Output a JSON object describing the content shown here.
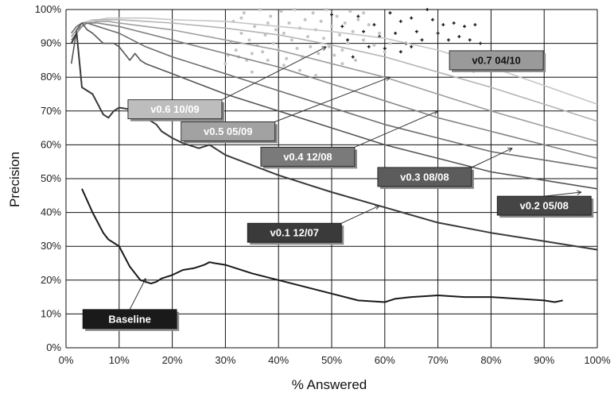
{
  "chart_data": {
    "type": "line",
    "xlabel": "% Answered",
    "ylabel": "Precision",
    "xlim": [
      0,
      100
    ],
    "ylim": [
      0,
      100
    ],
    "x_ticks": [
      "0%",
      "10%",
      "20%",
      "30%",
      "40%",
      "50%",
      "60%",
      "70%",
      "80%",
      "90%",
      "100%"
    ],
    "y_ticks": [
      "0%",
      "10%",
      "20%",
      "30%",
      "40%",
      "50%",
      "60%",
      "70%",
      "80%",
      "90%",
      "100%"
    ],
    "grid": true,
    "series": [
      {
        "name": "Baseline",
        "color": "#1a1a1a",
        "x": [
          3,
          5,
          7,
          8,
          9,
          10,
          11,
          12,
          13,
          14,
          15,
          16,
          17,
          18,
          20,
          22,
          24,
          26,
          27,
          28,
          30,
          35,
          40,
          45,
          50,
          55,
          60,
          62,
          65,
          70,
          75,
          80,
          85,
          90,
          92,
          93.5
        ],
        "y": [
          47,
          40,
          34,
          32,
          31,
          30,
          27,
          24,
          22,
          20,
          19.5,
          19,
          19.5,
          20.5,
          21.5,
          23,
          23.5,
          24.5,
          25.3,
          25,
          24.5,
          22,
          20,
          18,
          16,
          14,
          13.5,
          14.5,
          15,
          15.5,
          15,
          15,
          14.5,
          14,
          13.5,
          14
        ],
        "label": "Baseline",
        "label_x": 12,
        "label_y": 8.5,
        "label_fill": "#1a1a1a",
        "label_color": "#ffffff",
        "pointer_x": 15,
        "pointer_y": 20.5
      },
      {
        "name": "v0.1 12/07",
        "color": "#3a3a3a",
        "x": [
          1,
          2,
          3,
          5,
          7,
          8,
          9,
          10,
          12,
          14,
          15,
          17,
          18,
          20,
          22,
          25,
          27,
          30,
          35,
          40,
          50,
          60,
          70,
          80,
          90,
          100
        ],
        "y": [
          90,
          93,
          77,
          75,
          69,
          68,
          70,
          71,
          70.5,
          69.5,
          68,
          66,
          64,
          62,
          60.5,
          59,
          60,
          57,
          54,
          51,
          46,
          41.5,
          37,
          34,
          31.5,
          29
        ],
        "label": "v0.1 12/07",
        "label_x": 43,
        "label_y": 34,
        "label_fill": "#3a3a3a",
        "label_color": "#ffffff",
        "pointer_x": 59,
        "pointer_y": 42
      },
      {
        "name": "v0.2 05/08",
        "color": "#555555",
        "x": [
          1,
          2,
          3,
          4,
          5,
          7,
          8,
          9,
          10,
          11,
          12,
          13,
          14,
          15,
          20,
          25,
          30,
          40,
          50,
          60,
          70,
          80,
          90,
          100
        ],
        "y": [
          84,
          94,
          96,
          94,
          93,
          90,
          90,
          90,
          89,
          87,
          85,
          87,
          85,
          84,
          81,
          78,
          75,
          70,
          65,
          60,
          56,
          52,
          49.5,
          47
        ],
        "label": "v0.2 05/08",
        "label_x": 90,
        "label_y": 42,
        "label_fill": "#454545",
        "label_color": "#ffffff",
        "pointer_x": 97,
        "pointer_y": 46
      },
      {
        "name": "v0.3 08/08",
        "color": "#6e6e6e",
        "x": [
          1,
          2,
          3,
          4,
          5,
          6,
          8,
          10,
          15,
          20,
          30,
          40,
          50,
          60,
          70,
          80,
          90,
          100
        ],
        "y": [
          93,
          95,
          96,
          96,
          95.5,
          95,
          94,
          93,
          89,
          86,
          81,
          76,
          71,
          66,
          62,
          58,
          55.5,
          53
        ],
        "label": "v0.3 08/08",
        "label_x": 67.5,
        "label_y": 50.5,
        "label_fill": "#5c5c5c",
        "label_color": "#ffffff",
        "pointer_x": 84,
        "pointer_y": 59
      },
      {
        "name": "v0.4 12/08",
        "color": "#858585",
        "x": [
          1,
          2,
          3,
          4,
          5,
          6,
          8,
          10,
          15,
          20,
          30,
          40,
          50,
          60,
          70,
          80,
          90,
          100
        ],
        "y": [
          91,
          93,
          95,
          96,
          96,
          96,
          95.5,
          95,
          93,
          91,
          87,
          83,
          78,
          73,
          68,
          64,
          60,
          56
        ],
        "label": "v0.4 12/08",
        "label_x": 45.5,
        "label_y": 56.5,
        "label_fill": "#7a7a7a",
        "label_color": "#ffffff",
        "pointer_x": 70,
        "pointer_y": 70
      },
      {
        "name": "v0.5 05/09",
        "color": "#9e9e9e",
        "x": [
          1,
          2,
          3,
          4,
          5,
          6,
          8,
          10,
          15,
          20,
          30,
          40,
          50,
          60,
          70,
          80,
          90,
          100
        ],
        "y": [
          92,
          94,
          95,
          96,
          96,
          96.5,
          96.5,
          96,
          95,
          94,
          91,
          88,
          84,
          80,
          75,
          70,
          65.5,
          61
        ],
        "label": "v0.5 05/09",
        "label_x": 30.5,
        "label_y": 64,
        "label_fill": "#a2a2a2",
        "label_color": "#ffffff",
        "pointer_x": 61,
        "pointer_y": 80
      },
      {
        "name": "v0.6 10/09",
        "color": "#b4b4b4",
        "x": [
          1,
          2,
          3,
          4,
          5,
          6,
          8,
          10,
          15,
          20,
          30,
          40,
          50,
          60,
          70,
          80,
          90,
          100
        ],
        "y": [
          92,
          94,
          95,
          96,
          96.5,
          97,
          97,
          97,
          96.5,
          96,
          94.5,
          92.5,
          89.5,
          86,
          81.5,
          77,
          72,
          67
        ],
        "label": "v0.6 10/09",
        "label_x": 20.5,
        "label_y": 70.5,
        "label_fill": "#bdbdbd",
        "label_color": "#ffffff",
        "pointer_x": 49,
        "pointer_y": 89
      },
      {
        "name": "v0.7 04/10",
        "color": "#c6c6c6",
        "x": [
          1,
          2,
          3,
          4,
          5,
          6,
          8,
          10,
          15,
          20,
          30,
          40,
          50,
          60,
          70,
          80,
          90,
          100
        ],
        "y": [
          93,
          95,
          96,
          96.5,
          97,
          97,
          97.5,
          97.5,
          97.5,
          97,
          96.5,
          95,
          93.5,
          91.5,
          88,
          83,
          77.5,
          72
        ],
        "label": "v0.7 04/10",
        "label_x": 81,
        "label_y": 85,
        "label_fill": "#9a9a9a",
        "label_color": "#111111",
        "pointer_x": 76,
        "pointer_y": 82
      }
    ],
    "scatter_points": [
      {
        "x": 30,
        "y": 84
      },
      {
        "x": 30.5,
        "y": 86.5
      },
      {
        "x": 31,
        "y": 90.5
      },
      {
        "x": 31.5,
        "y": 96.5
      },
      {
        "x": 32,
        "y": 88
      },
      {
        "x": 32.5,
        "y": 86
      },
      {
        "x": 33,
        "y": 93
      },
      {
        "x": 33.5,
        "y": 99
      },
      {
        "x": 34,
        "y": 85
      },
      {
        "x": 34.5,
        "y": 91
      },
      {
        "x": 35,
        "y": 87
      },
      {
        "x": 35.5,
        "y": 95
      },
      {
        "x": 36,
        "y": 89.5
      },
      {
        "x": 36.5,
        "y": 100
      },
      {
        "x": 37,
        "y": 87.5
      },
      {
        "x": 37.5,
        "y": 92.5
      },
      {
        "x": 38,
        "y": 85
      },
      {
        "x": 38.5,
        "y": 98
      },
      {
        "x": 39,
        "y": 90
      },
      {
        "x": 39.5,
        "y": 94
      },
      {
        "x": 40,
        "y": 88
      },
      {
        "x": 40.5,
        "y": 99.5
      },
      {
        "x": 41,
        "y": 93
      },
      {
        "x": 41.5,
        "y": 85.5
      },
      {
        "x": 42,
        "y": 96
      },
      {
        "x": 42.5,
        "y": 91
      },
      {
        "x": 43,
        "y": 100
      },
      {
        "x": 43.5,
        "y": 88.5
      },
      {
        "x": 44,
        "y": 94.5
      },
      {
        "x": 44.5,
        "y": 86
      },
      {
        "x": 45,
        "y": 97
      },
      {
        "x": 45.5,
        "y": 92
      },
      {
        "x": 46,
        "y": 89
      },
      {
        "x": 46.5,
        "y": 99
      },
      {
        "x": 47,
        "y": 94
      },
      {
        "x": 47.5,
        "y": 87
      },
      {
        "x": 48,
        "y": 96.5
      },
      {
        "x": 48.5,
        "y": 91.5
      },
      {
        "x": 49,
        "y": 100
      },
      {
        "x": 49.5,
        "y": 89
      },
      {
        "x": 50,
        "y": 95
      },
      {
        "x": 50.5,
        "y": 86.5
      },
      {
        "x": 51,
        "y": 98
      },
      {
        "x": 51.5,
        "y": 92.5
      },
      {
        "x": 52,
        "y": 88
      },
      {
        "x": 52.5,
        "y": 96
      },
      {
        "x": 53,
        "y": 90
      },
      {
        "x": 53.5,
        "y": 99.5
      },
      {
        "x": 54,
        "y": 93.5
      },
      {
        "x": 54.5,
        "y": 85
      },
      {
        "x": 55,
        "y": 97
      },
      {
        "x": 56,
        "y": 91
      },
      {
        "x": 57,
        "y": 95.5
      },
      {
        "x": 58,
        "y": 89.5
      },
      {
        "x": 59,
        "y": 93
      },
      {
        "x": 60,
        "y": 87.5
      },
      {
        "x": 61,
        "y": 90
      },
      {
        "x": 44,
        "y": 82
      },
      {
        "x": 47,
        "y": 80.5
      },
      {
        "x": 35,
        "y": 81.5
      },
      {
        "x": 41,
        "y": 83.5
      },
      {
        "x": 52,
        "y": 84
      },
      {
        "x": 38,
        "y": 96
      },
      {
        "x": 33,
        "y": 97.5
      },
      {
        "x": 56,
        "y": 99
      }
    ],
    "scatter_points_dark": [
      {
        "x": 50,
        "y": 98.5
      },
      {
        "x": 52,
        "y": 95
      },
      {
        "x": 53,
        "y": 91
      },
      {
        "x": 55,
        "y": 98
      },
      {
        "x": 57,
        "y": 89
      },
      {
        "x": 58,
        "y": 95.5
      },
      {
        "x": 59,
        "y": 92
      },
      {
        "x": 61,
        "y": 99
      },
      {
        "x": 62,
        "y": 93
      },
      {
        "x": 63,
        "y": 96.5
      },
      {
        "x": 64,
        "y": 90
      },
      {
        "x": 65,
        "y": 97.5
      },
      {
        "x": 66,
        "y": 93.5
      },
      {
        "x": 67,
        "y": 91
      },
      {
        "x": 69,
        "y": 97
      },
      {
        "x": 70,
        "y": 93
      },
      {
        "x": 71,
        "y": 95.5
      },
      {
        "x": 72,
        "y": 91
      },
      {
        "x": 73,
        "y": 96
      },
      {
        "x": 74,
        "y": 92
      },
      {
        "x": 75,
        "y": 95
      },
      {
        "x": 76,
        "y": 91
      },
      {
        "x": 77,
        "y": 95.5
      },
      {
        "x": 78,
        "y": 90
      },
      {
        "x": 54,
        "y": 86
      },
      {
        "x": 60,
        "y": 88.5
      },
      {
        "x": 63,
        "y": 87.5
      },
      {
        "x": 68,
        "y": 100
      },
      {
        "x": 56,
        "y": 93.5
      },
      {
        "x": 65,
        "y": 89
      }
    ]
  }
}
